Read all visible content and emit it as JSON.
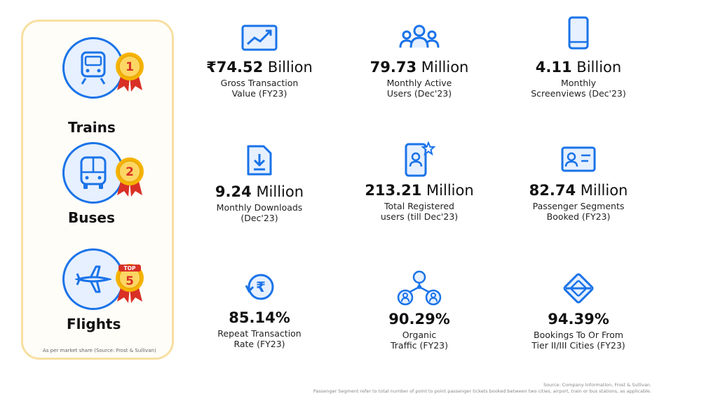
{
  "colors": {
    "accent": "#1a73e8",
    "panel_border": "#f7dfa0",
    "medal_gold": "#f5b301",
    "ribbon_red": "#d93025"
  },
  "modes": [
    {
      "label": "Trains",
      "rank": "1",
      "icon": "train-icon"
    },
    {
      "label": "Buses",
      "rank": "2",
      "icon": "bus-icon"
    },
    {
      "label": "Flights",
      "rank": "5",
      "rank_prefix": "TOP",
      "icon": "plane-icon"
    }
  ],
  "market_note": "As per market share (Source: Frost & Sullivan)",
  "stats": [
    {
      "prefix": "₹",
      "number": "74.52",
      "unit": "Billion",
      "line1": "Gross Transaction",
      "line2": "Value (FY23)",
      "icon": "chart-icon"
    },
    {
      "prefix": "",
      "number": "79.73",
      "unit": "Million",
      "line1": "Monthly Active",
      "line2": "Users (Dec'23)",
      "icon": "users-icon"
    },
    {
      "prefix": "",
      "number": "4.11",
      "unit": "Billion",
      "line1": "Monthly",
      "line2": "Screenviews (Dec'23)",
      "icon": "phone-icon"
    },
    {
      "prefix": "",
      "number": "9.24",
      "unit": "Million",
      "line1": "Monthly Downloads",
      "line2": "(Dec'23)",
      "icon": "download-icon"
    },
    {
      "prefix": "",
      "number": "213.21",
      "unit": "Million",
      "line1": "Total Registered",
      "line2": "users (till Dec'23)",
      "icon": "registered-user-icon"
    },
    {
      "prefix": "",
      "number": "82.74",
      "unit": "Million",
      "line1": "Passenger Segments",
      "line2": "Booked (FY23)",
      "icon": "id-card-icon"
    },
    {
      "prefix": "",
      "number": "85.14%",
      "unit": "",
      "line1": "Repeat Transaction",
      "line2": "Rate (FY23)",
      "icon": "rupee-repeat-icon"
    },
    {
      "prefix": "",
      "number": "90.29%",
      "unit": "",
      "line1": "Organic",
      "line2": "Traffic (FY23)",
      "icon": "network-icon"
    },
    {
      "prefix": "",
      "number": "94.39%",
      "unit": "",
      "line1": "Bookings To Or From",
      "line2": "Tier II/III Cities (FY23)",
      "icon": "diamond-route-icon"
    }
  ],
  "footer": {
    "source": "Source: Company Information, Frost & Sullivan.",
    "note": "Passenger Segment refer to total number of point to point passenger tickets booked between two cities, airport, train or bus stations, as applicable."
  }
}
